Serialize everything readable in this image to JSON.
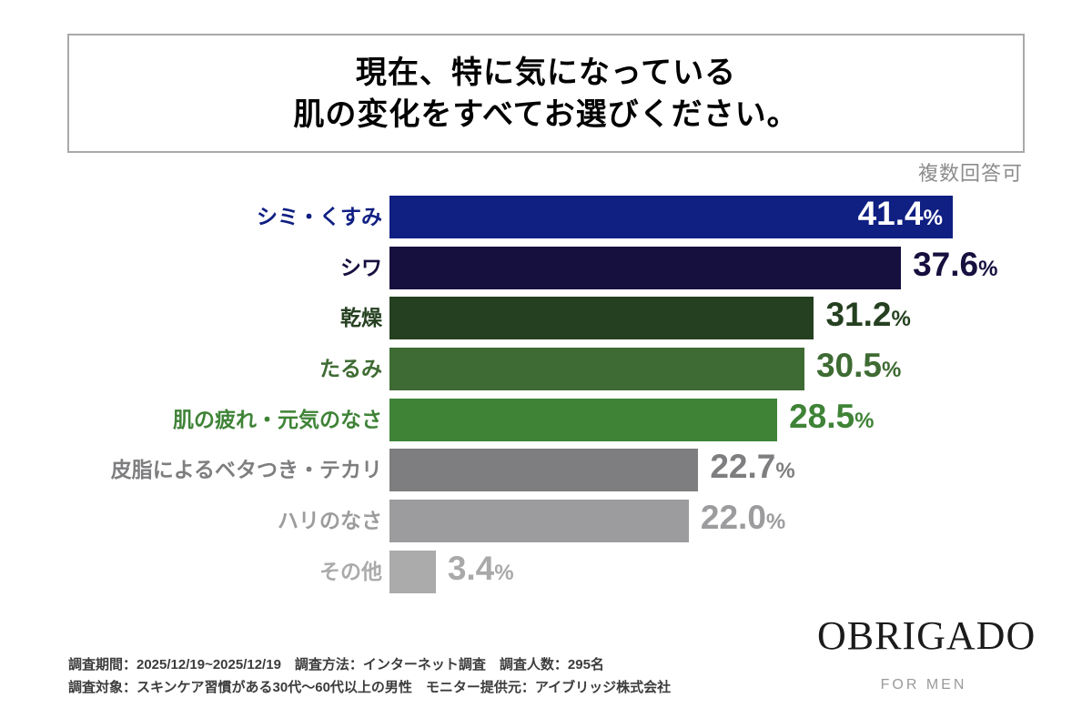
{
  "title": {
    "line1": "現在、特に気になっている",
    "line2": "肌の変化をすべてお選びください。"
  },
  "note": "複数回答可",
  "chart_data": {
    "type": "bar",
    "orientation": "horizontal",
    "value_unit": "%",
    "xlim": [
      0,
      45
    ],
    "grid": false,
    "legend": false,
    "categories": [
      "シミ・くすみ",
      "シワ",
      "乾燥",
      "たるみ",
      "肌の疲れ・元気のなさ",
      "皮脂によるベタつき・テカリ",
      "ハリのなさ",
      "その他"
    ],
    "values": [
      41.4,
      37.6,
      31.2,
      30.5,
      28.5,
      22.7,
      22.0,
      3.4
    ],
    "bars": [
      {
        "label": "シミ・くすみ",
        "value": 41.4,
        "display": "41.4",
        "color": "#101f82",
        "value_inside": true,
        "value_color": "#ffffff"
      },
      {
        "label": "シワ",
        "value": 37.6,
        "display": "37.6",
        "color": "#16103f",
        "value_inside": false,
        "value_color": "#16103f"
      },
      {
        "label": "乾燥",
        "value": 31.2,
        "display": "31.2",
        "color": "#254020",
        "value_inside": false,
        "value_color": "#254020"
      },
      {
        "label": "たるみ",
        "value": 30.5,
        "display": "30.5",
        "color": "#3e6b33",
        "value_inside": false,
        "value_color": "#3e6b33"
      },
      {
        "label": "肌の疲れ・元気のなさ",
        "value": 28.5,
        "display": "28.5",
        "color": "#3f8337",
        "value_inside": false,
        "value_color": "#3f8337"
      },
      {
        "label": "皮脂によるベタつき・テカリ",
        "value": 22.7,
        "display": "22.7",
        "color": "#7e7e80",
        "value_inside": false,
        "value_color": "#7e7e80"
      },
      {
        "label": "ハリのなさ",
        "value": 22.0,
        "display": "22.0",
        "color": "#9c9c9e",
        "value_inside": false,
        "value_color": "#9c9c9e"
      },
      {
        "label": "その他",
        "value": 3.4,
        "display": "3.4",
        "color": "#ababab",
        "value_inside": false,
        "value_color": "#a9a9a9"
      }
    ]
  },
  "footer": {
    "line1": "調査期間：2025/12/19~2025/12/19　調査方法：インターネット調査　調査人数：295名",
    "line2": "調査対象：スキンケア習慣がある30代〜60代以上の男性　モニター提供元：アイブリッジ株式会社"
  },
  "logo": {
    "text": "OBRIGADO",
    "tagline": "FOR MEN"
  }
}
